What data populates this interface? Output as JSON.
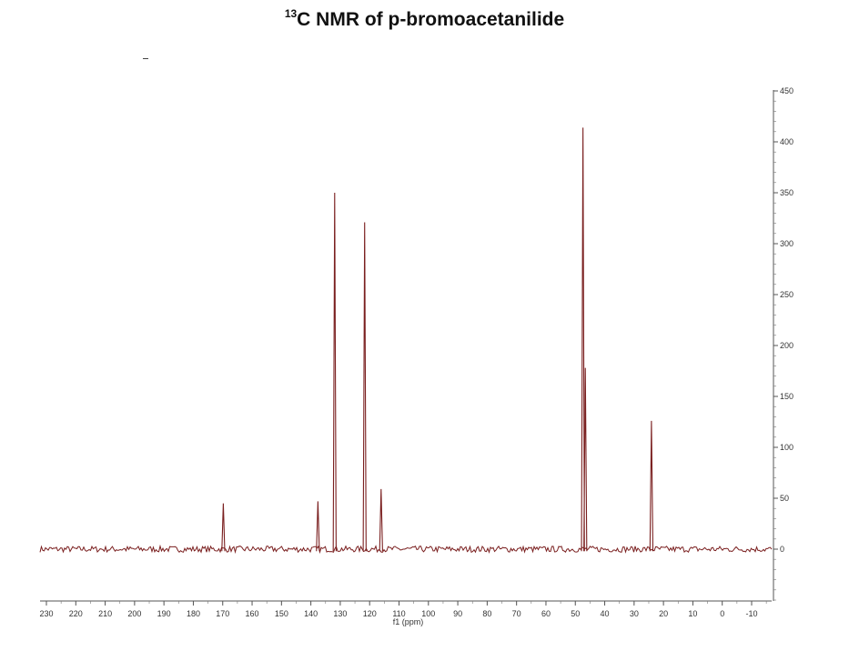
{
  "title": {
    "superscript": "13",
    "text": "C NMR of p-bromoacetanilide"
  },
  "chart_data": {
    "type": "line",
    "title": "13C NMR of p-bromoacetanilide",
    "xlabel": "f1 (ppm)",
    "ylabel": "",
    "x_reversed": true,
    "xlim": [
      230,
      -15
    ],
    "ylim": [
      -50,
      450
    ],
    "x_ticks": [
      "230",
      "220",
      "210",
      "200",
      "190",
      "180",
      "170",
      "160",
      "150",
      "140",
      "130",
      "120",
      "110",
      "100",
      "90",
      "80",
      "70",
      "60",
      "50",
      "40",
      "30",
      "20",
      "10",
      "0",
      "-10"
    ],
    "y_ticks": [
      "450",
      "400",
      "350",
      "300",
      "250",
      "200",
      "150",
      "100",
      "50",
      "0"
    ],
    "grid": false,
    "line_color": "#7a1f1f",
    "peaks": [
      {
        "ppm": 169.8,
        "intensity": 45
      },
      {
        "ppm": 137.6,
        "intensity": 47
      },
      {
        "ppm": 131.9,
        "intensity": 350
      },
      {
        "ppm": 121.7,
        "intensity": 321
      },
      {
        "ppm": 116.1,
        "intensity": 59
      },
      {
        "ppm": 47.4,
        "intensity": 414
      },
      {
        "ppm": 46.6,
        "intensity": 178
      },
      {
        "ppm": 24.1,
        "intensity": 126
      }
    ]
  }
}
